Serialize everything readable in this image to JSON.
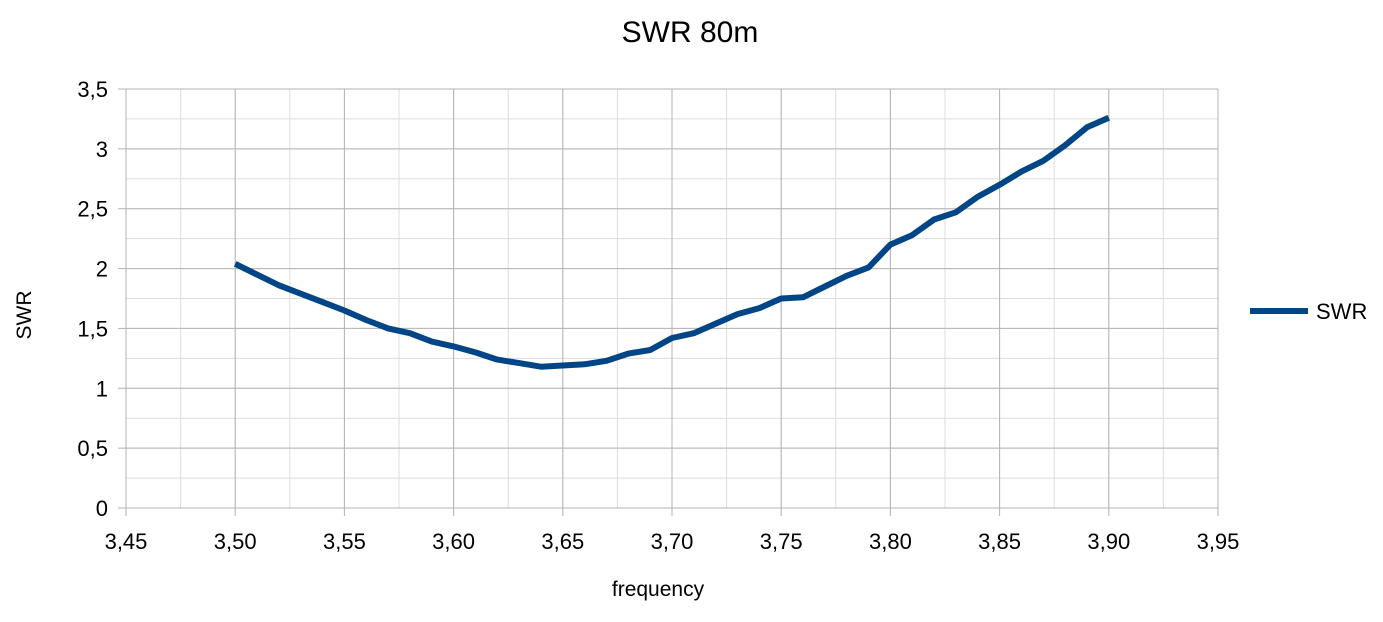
{
  "chart_data": {
    "type": "line",
    "title": "SWR 80m",
    "xlabel": "frequency",
    "ylabel": "SWR",
    "xlim": [
      3.45,
      3.95
    ],
    "ylim": [
      0,
      3.5
    ],
    "x_major_step": 0.05,
    "y_major_step": 0.5,
    "x_minor_step": 0.025,
    "y_minor_step": 0.25,
    "decimal_separator": ",",
    "x_ticks": [
      "3,45",
      "3,50",
      "3,55",
      "3,60",
      "3,65",
      "3,70",
      "3,75",
      "3,80",
      "3,85",
      "3,90",
      "3,95"
    ],
    "y_ticks": [
      "0",
      "0,5",
      "1",
      "1,5",
      "2",
      "2,5",
      "3",
      "3,5"
    ],
    "grid": true,
    "legend_position": "right",
    "series": [
      {
        "name": "SWR",
        "color": "#004586",
        "x": [
          3.5,
          3.51,
          3.52,
          3.53,
          3.54,
          3.55,
          3.56,
          3.57,
          3.58,
          3.59,
          3.6,
          3.61,
          3.62,
          3.63,
          3.64,
          3.65,
          3.66,
          3.67,
          3.68,
          3.69,
          3.7,
          3.71,
          3.72,
          3.73,
          3.74,
          3.75,
          3.76,
          3.77,
          3.78,
          3.79,
          3.8,
          3.81,
          3.82,
          3.83,
          3.84,
          3.85,
          3.86,
          3.87,
          3.88,
          3.89,
          3.9
        ],
        "values": [
          2.04,
          1.95,
          1.86,
          1.79,
          1.72,
          1.65,
          1.57,
          1.5,
          1.46,
          1.39,
          1.35,
          1.3,
          1.24,
          1.21,
          1.18,
          1.19,
          1.2,
          1.23,
          1.29,
          1.32,
          1.42,
          1.46,
          1.54,
          1.62,
          1.67,
          1.75,
          1.76,
          1.85,
          1.94,
          2.01,
          2.2,
          2.28,
          2.41,
          2.47,
          2.6,
          2.7,
          2.81,
          2.9,
          3.03,
          3.18,
          3.26
        ]
      }
    ]
  }
}
